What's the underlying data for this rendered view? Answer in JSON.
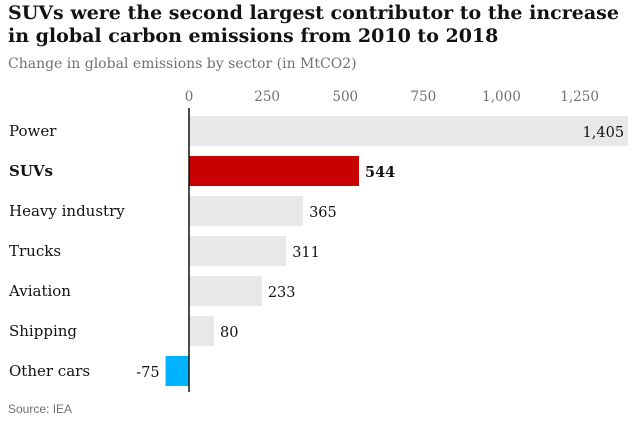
{
  "chart_data": {
    "type": "bar",
    "orientation": "horizontal",
    "title": "SUVs were the second largest contributor to the increase in global carbon emissions from 2010 to 2018",
    "subtitle": "Change in global emissions by sector (in MtCO2)",
    "source": "Source: IEA",
    "categories": [
      "Power",
      "SUVs",
      "Heavy industry",
      "Trucks",
      "Aviation",
      "Shipping",
      "Other cars"
    ],
    "values": [
      1405,
      544,
      365,
      311,
      233,
      80,
      -75
    ],
    "value_labels": [
      "1,405",
      "544",
      "365",
      "311",
      "233",
      "80",
      "-75"
    ],
    "highlight": "SUVs",
    "xlim": [
      -100,
      1405
    ],
    "ticks": [
      0,
      250,
      500,
      750,
      1000,
      1250
    ],
    "tick_labels": [
      "0",
      "250",
      "500",
      "750",
      "1,000",
      "1,250"
    ],
    "colors": {
      "default_bar": "#e8e8e8",
      "highlight_bar": "#c70000",
      "negative_bar": "#00b2ff",
      "axis": "#121212"
    }
  }
}
